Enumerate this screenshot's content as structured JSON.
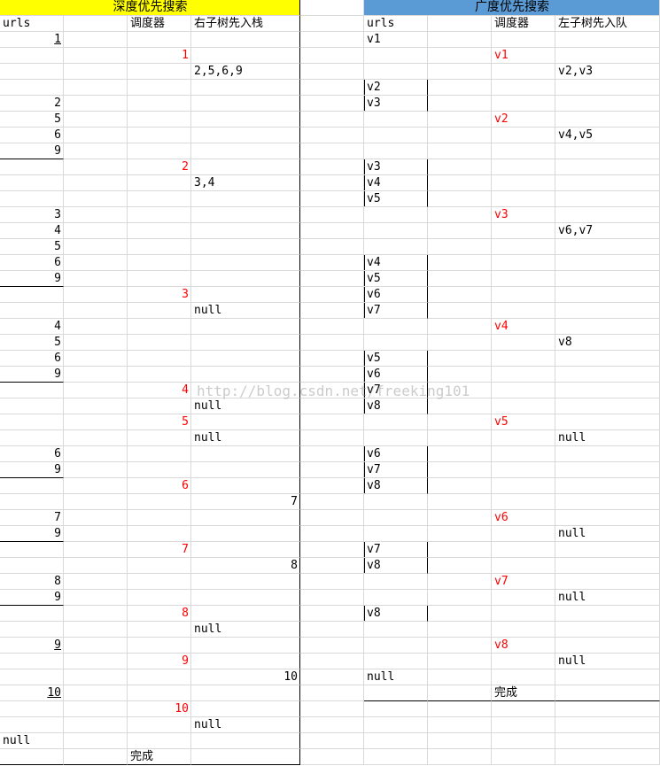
{
  "scheduler_color": "#ff0000",
  "watermark": "http://blog.csdn.net/freeking101",
  "dfs": {
    "title": "深度优先搜索",
    "header_color": "#ffff00",
    "columns": {
      "urls": "urls",
      "scheduler": "调度器",
      "stack": "右子树先入栈"
    },
    "rows": [
      {
        "urls": "1",
        "underline": true
      },
      {
        "scheduler": "1"
      },
      {
        "stack": "2,5,6,9"
      },
      {},
      {
        "urls": "2"
      },
      {
        "urls": "5"
      },
      {
        "urls": "6"
      },
      {
        "urls": "9",
        "rule_below": true
      },
      {
        "scheduler": "2"
      },
      {
        "stack": "3,4"
      },
      {},
      {
        "urls": "3"
      },
      {
        "urls": "4"
      },
      {
        "urls": "5"
      },
      {
        "urls": "6"
      },
      {
        "urls": "9",
        "rule_below": true
      },
      {
        "scheduler": "3"
      },
      {
        "stack": "null"
      },
      {
        "urls": "4"
      },
      {
        "urls": "5"
      },
      {
        "urls": "6"
      },
      {
        "urls": "9",
        "rule_below": true
      },
      {
        "scheduler": "4"
      },
      {
        "stack": "null"
      },
      {
        "scheduler": "5"
      },
      {
        "stack": "null"
      },
      {
        "urls": "6"
      },
      {
        "urls": "9",
        "rule_below": true
      },
      {
        "scheduler": "6"
      },
      {
        "stack": "7"
      },
      {
        "urls": "7"
      },
      {
        "urls": "9",
        "rule_below": true
      },
      {
        "scheduler": "7"
      },
      {
        "stack": "8"
      },
      {
        "urls": "8"
      },
      {
        "urls": "9",
        "rule_below": true
      },
      {
        "scheduler": "8"
      },
      {
        "stack": "null"
      },
      {
        "urls": "9",
        "underline": true
      },
      {
        "scheduler": "9"
      },
      {
        "stack": "10"
      },
      {
        "urls": "10",
        "underline": true
      },
      {
        "scheduler": "10"
      },
      {
        "stack": "null"
      },
      {
        "urls": "null"
      },
      {
        "status": "完成"
      }
    ]
  },
  "bfs": {
    "title": "广度优先搜索",
    "header_color": "#5b9bd5",
    "columns": {
      "urls": "urls",
      "scheduler": "调度器",
      "queue": "左子树先入队"
    },
    "rows": [
      {
        "urls": "v1"
      },
      {
        "scheduler": "v1"
      },
      {
        "queue": "v2,v3"
      },
      {
        "urls": "v2",
        "boxed": true
      },
      {
        "urls": "v3",
        "boxed": true
      },
      {
        "scheduler": "v2"
      },
      {
        "queue": "v4,v5"
      },
      {},
      {
        "urls": "v3",
        "boxed": true
      },
      {
        "urls": "v4",
        "boxed": true
      },
      {
        "urls": "v5",
        "boxed": true
      },
      {
        "scheduler": "v3"
      },
      {
        "queue": "v6,v7"
      },
      {},
      {
        "urls": "v4",
        "boxed": true
      },
      {
        "urls": "v5",
        "boxed": true
      },
      {
        "urls": "v6",
        "boxed": true
      },
      {
        "urls": "v7",
        "boxed": true
      },
      {
        "scheduler": "v4"
      },
      {
        "queue": "v8"
      },
      {
        "urls": "v5",
        "boxed": true
      },
      {
        "urls": "v6",
        "boxed": true
      },
      {
        "urls": "v7",
        "boxed": true
      },
      {
        "urls": "v8",
        "boxed": true
      },
      {
        "scheduler": "v5"
      },
      {
        "queue": "null"
      },
      {
        "urls": "v6",
        "boxed": true
      },
      {
        "urls": "v7",
        "boxed": true
      },
      {
        "urls": "v8",
        "boxed": true
      },
      {},
      {
        "scheduler": "v6"
      },
      {
        "queue": "null"
      },
      {
        "urls": "v7",
        "boxed": true
      },
      {
        "urls": "v8",
        "boxed": true
      },
      {
        "scheduler": "v7"
      },
      {
        "queue": "null"
      },
      {
        "urls": "v8",
        "boxed": true
      },
      {},
      {
        "scheduler": "v8"
      },
      {
        "queue": "null"
      },
      {
        "urls": "null"
      },
      {
        "status": "完成"
      }
    ]
  }
}
